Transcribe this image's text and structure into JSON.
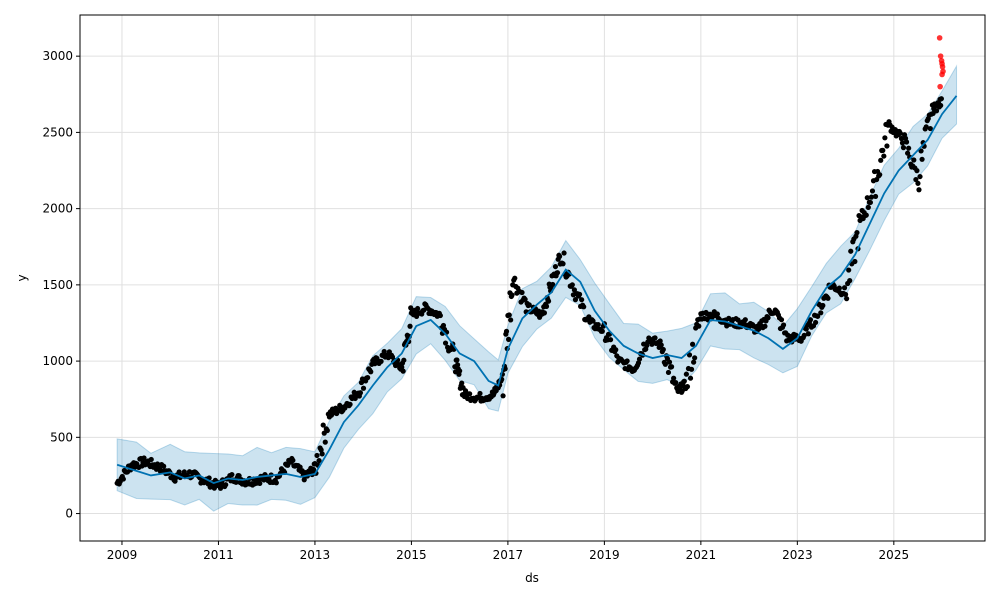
{
  "chart_data": {
    "type": "line",
    "title": "",
    "xlabel": "ds",
    "ylabel": "y",
    "x_tick_labels": [
      "2009",
      "2011",
      "2013",
      "2015",
      "2017",
      "2019",
      "2021",
      "2023",
      "2025"
    ],
    "y_tick_labels": [
      "0",
      "500",
      "1000",
      "1500",
      "2000",
      "2500",
      "3000"
    ],
    "x_ticks": [
      2009,
      2011,
      2013,
      2015,
      2017,
      2019,
      2021,
      2023,
      2025
    ],
    "y_ticks": [
      0,
      500,
      1000,
      1500,
      2000,
      2500,
      3000
    ],
    "xlim": [
      2008.13,
      2026.89
    ],
    "ylim": [
      -180,
      3270
    ],
    "grid": true,
    "legend": "none",
    "colors": {
      "observed": "#000000",
      "forecast": "#0072B2",
      "uncertainty": "#0072B2",
      "outlier": "#ff0000"
    },
    "series": [
      {
        "role": "forecast",
        "x": [
          2008.9,
          2009.3,
          2009.6,
          2010.0,
          2010.3,
          2010.6,
          2010.9,
          2011.2,
          2011.5,
          2011.8,
          2012.1,
          2012.4,
          2012.7,
          2013.0,
          2013.3,
          2013.6,
          2013.9,
          2014.2,
          2014.5,
          2014.8,
          2015.1,
          2015.4,
          2015.7,
          2016.0,
          2016.3,
          2016.6,
          2016.8,
          2017.0,
          2017.3,
          2017.6,
          2017.9,
          2018.2,
          2018.5,
          2018.8,
          2019.1,
          2019.4,
          2019.7,
          2020.0,
          2020.3,
          2020.6,
          2020.9,
          2021.2,
          2021.5,
          2021.8,
          2022.1,
          2022.4,
          2022.7,
          2023.0,
          2023.3,
          2023.6,
          2023.9,
          2024.2,
          2024.5,
          2024.8,
          2025.1,
          2025.4,
          2025.7,
          2026.0,
          2026.3
        ],
        "y": [
          320,
          280,
          250,
          270,
          230,
          250,
          200,
          230,
          220,
          240,
          250,
          260,
          240,
          260,
          420,
          600,
          710,
          840,
          960,
          1050,
          1230,
          1270,
          1180,
          1050,
          1000,
          870,
          840,
          1080,
          1280,
          1370,
          1450,
          1600,
          1520,
          1330,
          1200,
          1100,
          1050,
          1020,
          1040,
          1020,
          1100,
          1270,
          1260,
          1230,
          1200,
          1150,
          1080,
          1150,
          1330,
          1480,
          1560,
          1700,
          1900,
          2100,
          2250,
          2350,
          2450,
          2620,
          2740
        ]
      }
    ],
    "band_half_width": 170,
    "observed_approx": {
      "x": [
        2008.9,
        2009.2,
        2009.5,
        2009.8,
        2010.1,
        2010.4,
        2010.7,
        2011.0,
        2011.3,
        2011.6,
        2011.9,
        2012.2,
        2012.5,
        2012.8,
        2013.0,
        2013.3,
        2013.6,
        2013.9,
        2014.2,
        2014.5,
        2014.8,
        2015.0,
        2015.3,
        2015.6,
        2015.9,
        2016.1,
        2016.4,
        2016.7,
        2016.9,
        2017.1,
        2017.4,
        2017.7,
        2017.9,
        2018.1,
        2018.4,
        2018.7,
        2019.0,
        2019.3,
        2019.6,
        2019.9,
        2020.2,
        2020.5,
        2020.7,
        2021.0,
        2021.3,
        2021.6,
        2021.9,
        2022.2,
        2022.5,
        2022.8,
        2023.1,
        2023.4,
        2023.7,
        2024.0,
        2024.3,
        2024.6,
        2024.9,
        2025.2,
        2025.5,
        2025.8,
        2026.0
      ],
      "y": [
        200,
        320,
        340,
        300,
        240,
        260,
        220,
        180,
        240,
        210,
        230,
        230,
        340,
        240,
        300,
        650,
        700,
        800,
        980,
        1050,
        950,
        1300,
        1350,
        1300,
        1000,
        780,
        760,
        780,
        900,
        1550,
        1350,
        1300,
        1500,
        1700,
        1450,
        1250,
        1200,
        1000,
        950,
        1150,
        1100,
        800,
        850,
        1300,
        1300,
        1250,
        1250,
        1200,
        1350,
        1150,
        1150,
        1300,
        1500,
        1450,
        1900,
        2150,
        2550,
        2450,
        2200,
        2650,
        2700
      ]
    },
    "outliers": {
      "x": [
        2025.95,
        2025.97,
        2025.99,
        2026.0,
        2026.01,
        2026.02,
        2026.0,
        2025.96
      ],
      "y": [
        3120,
        3000,
        2970,
        2950,
        2930,
        2900,
        2880,
        2800
      ]
    }
  }
}
